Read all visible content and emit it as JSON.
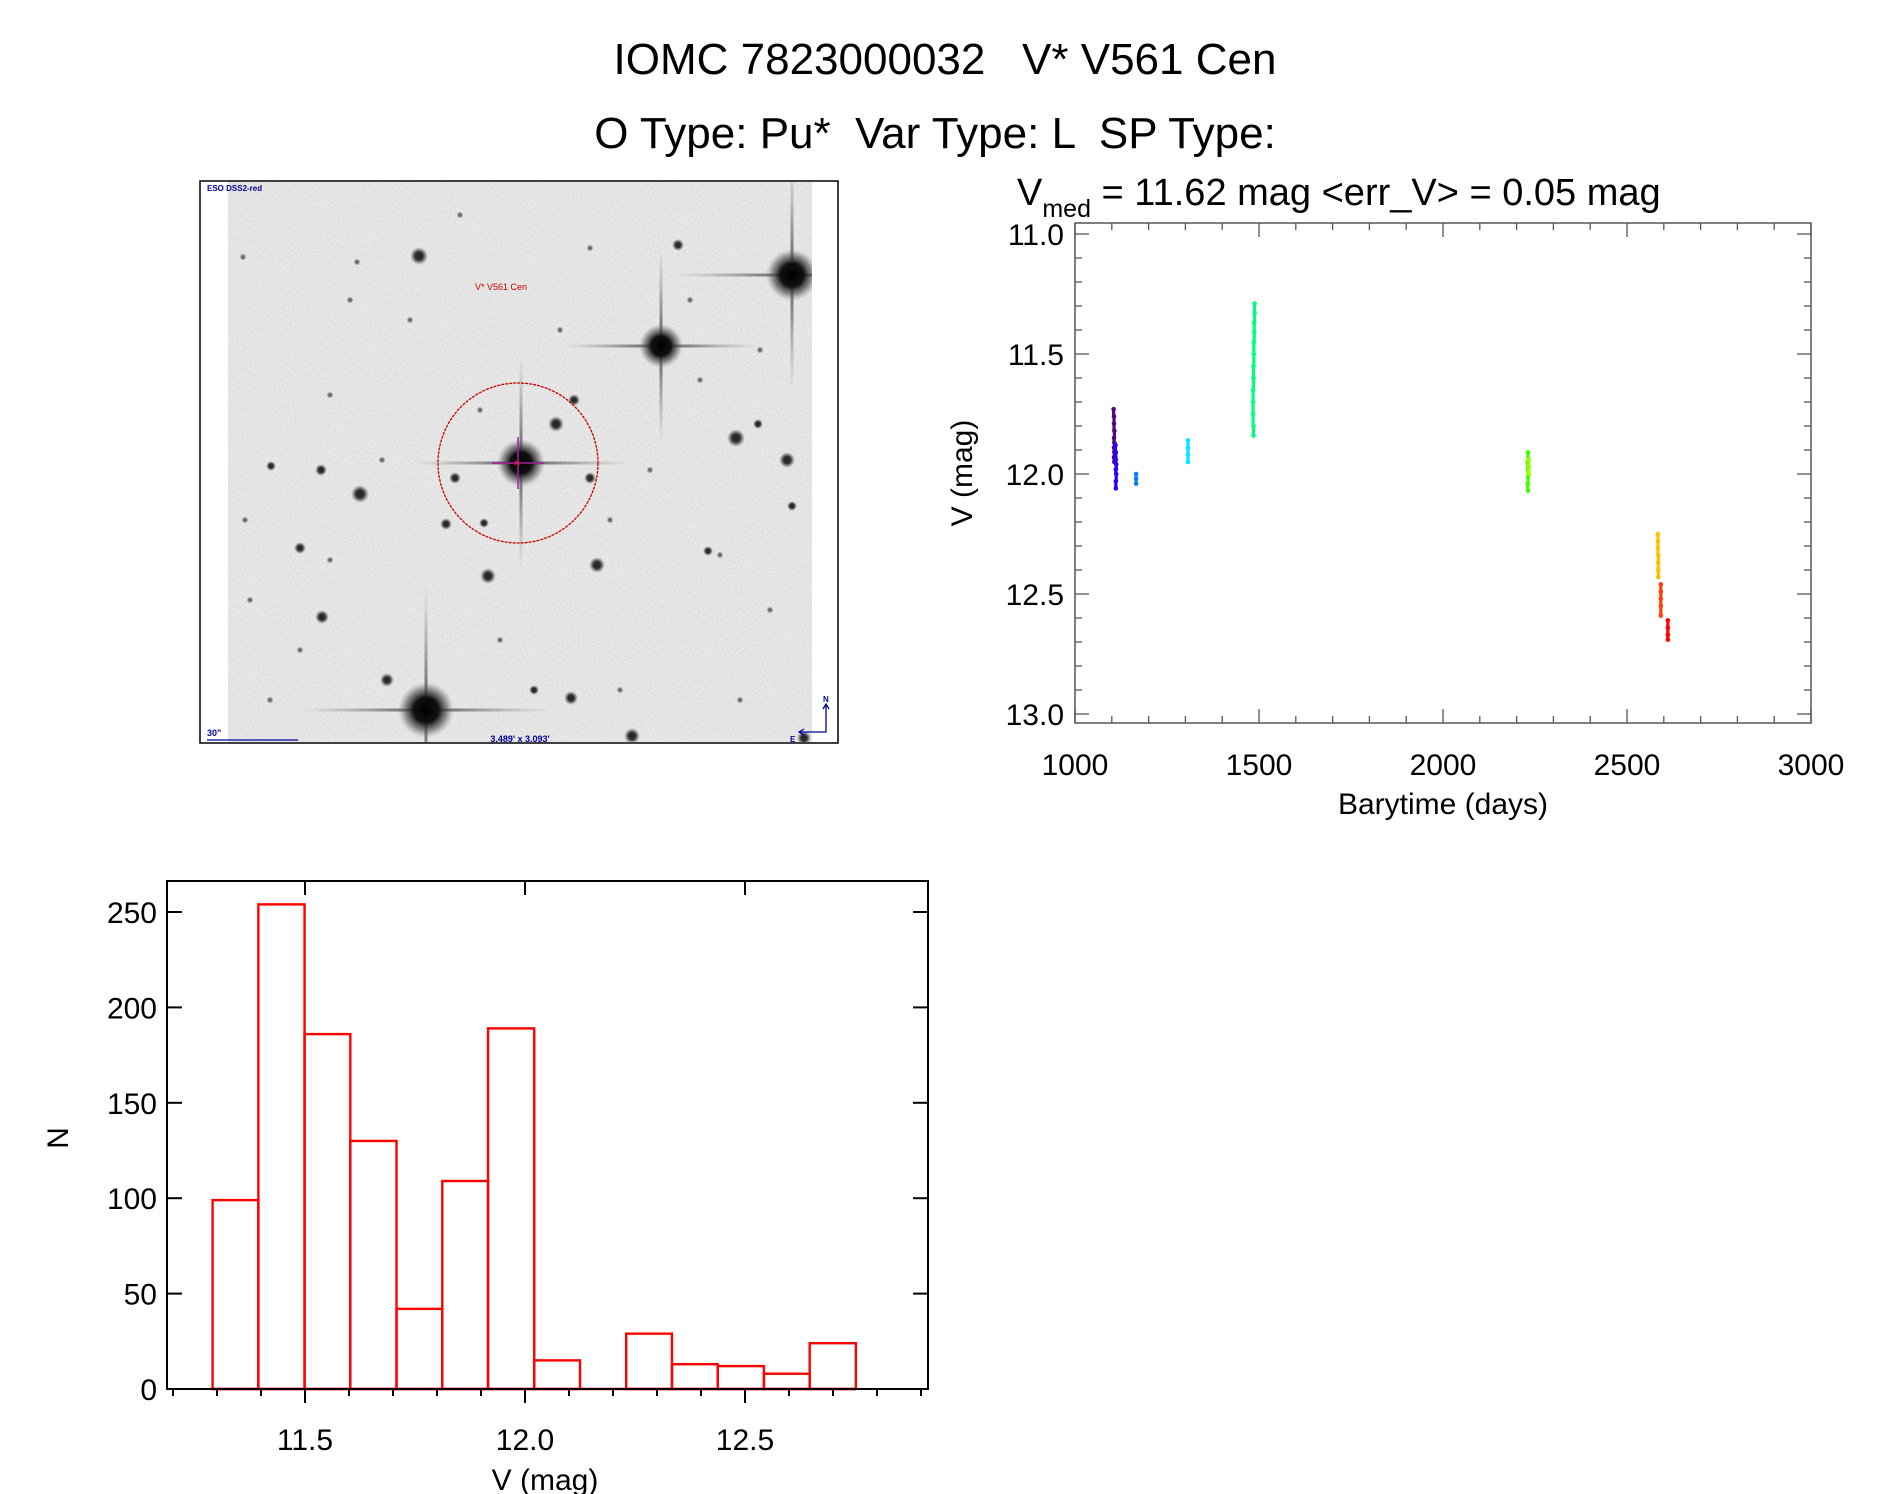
{
  "header": {
    "title_line1": "IOMC 7823000032   V* V561 Cen",
    "title_line2": "O Type: Pu*  Var Type: L  SP Type:",
    "vmed_symbol": "V",
    "vmed_subscript": "med",
    "vmed_text": " = 11.62 mag <err_V> = 0.05 mag"
  },
  "finder_image": {
    "survey_label": "ESO DSS2-red",
    "target_label": "V* V561 Cen",
    "scale_label": "30\"",
    "field_size_label": "3.489' x 3.093'",
    "north_label": "N",
    "east_label": "E",
    "label_color_blue": "#000099",
    "label_color_red": "#cc0000"
  },
  "chart_data": [
    {
      "type": "scatter",
      "title": "",
      "xlabel": "Barytime (days)",
      "ylabel": "V (mag)",
      "xlim": [
        1000,
        3000
      ],
      "ylim": [
        13.0,
        11.0
      ],
      "y_inverted": true,
      "x_ticks": [
        "1000",
        "1500",
        "2000",
        "2500",
        "3000"
      ],
      "y_ticks": [
        "11.0",
        "11.5",
        "12.0",
        "12.5",
        "13.0"
      ],
      "grid": false,
      "clusters": [
        {
          "color": "#4b0a78",
          "x": [
            1105,
            1106,
            1106,
            1107,
            1106,
            1107,
            1106,
            1107,
            1106,
            1107
          ],
          "y": [
            11.73,
            11.76,
            11.79,
            11.82,
            11.85,
            11.87,
            11.89,
            11.91,
            11.93,
            11.95
          ]
        },
        {
          "color": "#2a00ff",
          "x": [
            1110,
            1111,
            1111,
            1112,
            1111,
            1112,
            1111,
            1111
          ],
          "y": [
            11.88,
            11.91,
            11.94,
            11.96,
            11.98,
            12.0,
            12.03,
            12.06
          ]
        },
        {
          "color": "#0a78ff",
          "x": [
            1166,
            1166,
            1166
          ],
          "y": [
            12.0,
            12.02,
            12.04
          ]
        },
        {
          "color": "#00e8ff",
          "x": [
            1307,
            1307,
            1307,
            1307
          ],
          "y": [
            11.86,
            11.89,
            11.92,
            11.95
          ]
        },
        {
          "color": "#00ff80",
          "x": [
            1488,
            1488,
            1487,
            1487,
            1486,
            1486,
            1485,
            1485,
            1484,
            1484,
            1484,
            1485,
            1485
          ],
          "y": [
            11.29,
            11.33,
            11.37,
            11.41,
            11.45,
            11.5,
            11.55,
            11.6,
            11.65,
            11.7,
            11.75,
            11.8,
            11.84
          ]
        },
        {
          "color": "#40ff00",
          "x": [
            2231,
            2230,
            2231,
            2231,
            2230,
            2231
          ],
          "y": [
            11.91,
            11.95,
            11.98,
            12.01,
            12.04,
            12.07
          ]
        },
        {
          "color": "#9cff00",
          "x": [
            2233,
            2233,
            2233
          ],
          "y": [
            11.94,
            11.97,
            12.0
          ]
        },
        {
          "color": "#ffc000",
          "x": [
            2584,
            2584,
            2584,
            2585,
            2585,
            2585,
            2585
          ],
          "y": [
            12.25,
            12.28,
            12.31,
            12.34,
            12.37,
            12.4,
            12.43
          ]
        },
        {
          "color": "#ff4000",
          "x": [
            2592,
            2592,
            2592,
            2592,
            2592
          ],
          "y": [
            12.46,
            12.49,
            12.52,
            12.55,
            12.59
          ]
        },
        {
          "color": "#ff0000",
          "x": [
            2611,
            2611,
            2611,
            2611
          ],
          "y": [
            12.61,
            12.64,
            12.67,
            12.69
          ]
        }
      ]
    },
    {
      "type": "bar",
      "title": "",
      "xlabel": "V (mag)",
      "ylabel": "N",
      "xlim": [
        11.186,
        12.916
      ],
      "ylim": [
        0,
        266
      ],
      "x_ticks": [
        "11.5",
        "12.0",
        "12.5"
      ],
      "y_ticks": [
        "0",
        "50",
        "100",
        "150",
        "200",
        "250"
      ],
      "grid": false,
      "bar_color": "#ff0000",
      "bin_edges": [
        11.29,
        11.394,
        11.499,
        11.603,
        11.708,
        11.812,
        11.916,
        12.021,
        12.125,
        12.23,
        12.334,
        12.438,
        12.543,
        12.647,
        12.752
      ],
      "values": [
        99,
        254,
        186,
        130,
        42,
        109,
        189,
        15,
        0,
        29,
        13,
        12,
        8,
        24
      ]
    }
  ]
}
